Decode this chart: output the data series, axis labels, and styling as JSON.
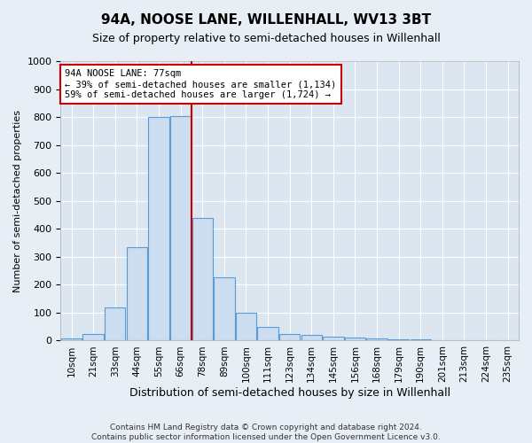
{
  "title": "94A, NOOSE LANE, WILLENHALL, WV13 3BT",
  "subtitle": "Size of property relative to semi-detached houses in Willenhall",
  "xlabel": "Distribution of semi-detached houses by size in Willenhall",
  "ylabel": "Number of semi-detached properties",
  "categories": [
    "10sqm",
    "21sqm",
    "33sqm",
    "44sqm",
    "55sqm",
    "66sqm",
    "78sqm",
    "89sqm",
    "100sqm",
    "111sqm",
    "123sqm",
    "134sqm",
    "145sqm",
    "156sqm",
    "168sqm",
    "179sqm",
    "190sqm",
    "201sqm",
    "213sqm",
    "224sqm",
    "235sqm"
  ],
  "values": [
    8,
    25,
    120,
    335,
    800,
    805,
    440,
    225,
    100,
    50,
    25,
    20,
    15,
    10,
    8,
    5,
    4,
    3,
    2,
    2,
    2
  ],
  "bar_color": "#ccddf0",
  "bar_edge_color": "#5b9bd5",
  "property_bin_index": 5,
  "annotation_title": "94A NOOSE LANE: 77sqm",
  "annotation_line1": "← 39% of semi-detached houses are smaller (1,134)",
  "annotation_line2": "59% of semi-detached houses are larger (1,724) →",
  "vline_color": "#cc0000",
  "annotation_box_edge": "#cc0000",
  "footer": "Contains HM Land Registry data © Crown copyright and database right 2024.\nContains public sector information licensed under the Open Government Licence v3.0.",
  "ylim": [
    0,
    1000
  ],
  "yticks": [
    0,
    100,
    200,
    300,
    400,
    500,
    600,
    700,
    800,
    900,
    1000
  ],
  "background_color": "#e8eef5",
  "plot_background": "#dce6f0"
}
